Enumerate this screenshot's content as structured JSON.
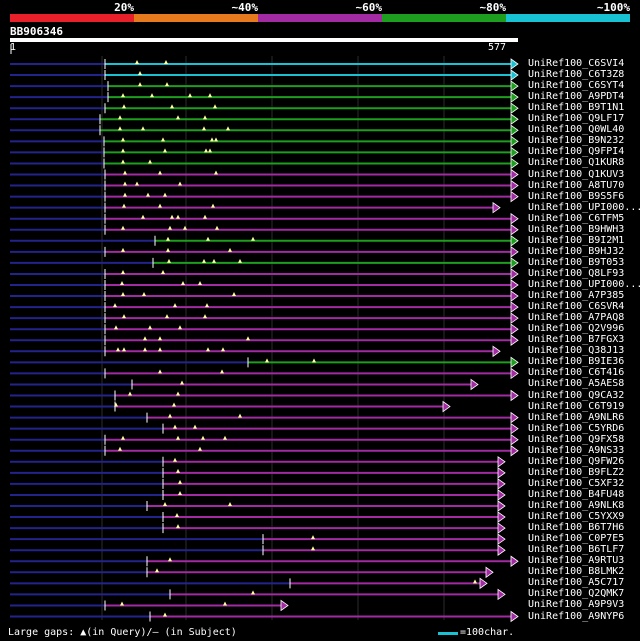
{
  "legend": {
    "segments": [
      {
        "color": "#e8202a"
      },
      {
        "color": "#e87a1e"
      },
      {
        "color": "#a22aa2"
      },
      {
        "color": "#1e9e1e"
      },
      {
        "color": "#19c2d2"
      }
    ],
    "labels": [
      "20%",
      "~40%",
      "~60%",
      "~80%",
      "~100%"
    ]
  },
  "query": {
    "id": "BB906346",
    "start": "1",
    "end": "577"
  },
  "colors": {
    "cyan": "#19c2d2",
    "green": "#1e9e1e",
    "purple": "#a22aa2",
    "subject": "#23238c",
    "gridline": "#2c2c2c",
    "gap": "#ffffa0"
  },
  "hits": [
    {
      "label": "UniRef100_C6SVI4",
      "color": "cyan",
      "start": 105,
      "end": 518,
      "sstart": 10,
      "gaps": [
        137,
        166
      ]
    },
    {
      "label": "UniRef100_C6T3Z8",
      "color": "cyan",
      "start": 105,
      "end": 518,
      "sstart": 10,
      "gaps": [
        140
      ]
    },
    {
      "label": "UniRef100_C6SYT4",
      "color": "green",
      "start": 108,
      "end": 518,
      "sstart": 10,
      "gaps": [
        140,
        167
      ]
    },
    {
      "label": "UniRef100_A9PDT4",
      "color": "green",
      "start": 108,
      "end": 518,
      "sstart": 10,
      "gaps": [
        123,
        152,
        190,
        210
      ]
    },
    {
      "label": "UniRef100_B9T1N1",
      "color": "green",
      "start": 105,
      "end": 518,
      "sstart": 10,
      "gaps": [
        124,
        172,
        215
      ]
    },
    {
      "label": "UniRef100_Q9LF17",
      "color": "green",
      "start": 100,
      "end": 518,
      "sstart": 10,
      "gaps": [
        120,
        178,
        205
      ]
    },
    {
      "label": "UniRef100_Q0WL40",
      "color": "green",
      "start": 100,
      "end": 518,
      "sstart": 10,
      "gaps": [
        120,
        143,
        204,
        228
      ]
    },
    {
      "label": "UniRef100_B9N232",
      "color": "green",
      "start": 104,
      "end": 518,
      "sstart": 10,
      "gaps": [
        123,
        163,
        212,
        216
      ]
    },
    {
      "label": "UniRef100_Q9FPI4",
      "color": "green",
      "start": 104,
      "end": 518,
      "sstart": 10,
      "gaps": [
        123,
        165,
        206,
        210
      ]
    },
    {
      "label": "UniRef100_Q1KUR8",
      "color": "green",
      "start": 104,
      "end": 518,
      "sstart": 10,
      "gaps": [
        123,
        150
      ]
    },
    {
      "label": "UniRef100_Q1KUV3",
      "color": "purple",
      "start": 105,
      "end": 518,
      "sstart": 10,
      "gaps": [
        125,
        160,
        216
      ]
    },
    {
      "label": "UniRef100_A8TU70",
      "color": "purple",
      "start": 105,
      "end": 518,
      "sstart": 10,
      "gaps": [
        125,
        137,
        180
      ]
    },
    {
      "label": "UniRef100_B9S5F6",
      "color": "purple",
      "start": 105,
      "end": 518,
      "sstart": 10,
      "gaps": [
        125,
        148,
        165
      ]
    },
    {
      "label": "UniRef100_UPI000...",
      "color": "purple",
      "start": 105,
      "end": 500,
      "sstart": 10,
      "gaps": [
        124,
        160,
        213
      ]
    },
    {
      "label": "UniRef100_C6TFM5",
      "color": "purple",
      "start": 105,
      "end": 518,
      "sstart": 10,
      "gaps": [
        143,
        172,
        178,
        205
      ]
    },
    {
      "label": "UniRef100_B9HWH3",
      "color": "purple",
      "start": 105,
      "end": 518,
      "sstart": 10,
      "gaps": [
        123,
        170,
        185,
        217
      ]
    },
    {
      "label": "UniRef100_B9I2M1",
      "color": "green",
      "start": 155,
      "end": 518,
      "sstart": 10,
      "gaps": [
        168,
        208,
        253
      ]
    },
    {
      "label": "UniRef100_B9HJ32",
      "color": "purple",
      "start": 105,
      "end": 518,
      "sstart": 10,
      "gaps": [
        123,
        168,
        230
      ]
    },
    {
      "label": "UniRef100_B9T053",
      "color": "green",
      "start": 153,
      "end": 518,
      "sstart": 10,
      "gaps": [
        169,
        204,
        214,
        240
      ]
    },
    {
      "label": "UniRef100_Q8LF93",
      "color": "purple",
      "start": 105,
      "end": 518,
      "sstart": 10,
      "gaps": [
        123,
        163
      ]
    },
    {
      "label": "UniRef100_UPI000...",
      "color": "purple",
      "start": 105,
      "end": 518,
      "sstart": 10,
      "gaps": [
        122,
        183,
        200
      ]
    },
    {
      "label": "UniRef100_A7P385",
      "color": "purple",
      "start": 105,
      "end": 518,
      "sstart": 10,
      "gaps": [
        123,
        144,
        234
      ]
    },
    {
      "label": "UniRef100_C6SVR4",
      "color": "purple",
      "start": 105,
      "end": 518,
      "sstart": 10,
      "gaps": [
        115,
        175,
        207
      ]
    },
    {
      "label": "UniRef100_A7PAQ8",
      "color": "purple",
      "start": 105,
      "end": 518,
      "sstart": 10,
      "gaps": [
        124,
        167,
        205
      ]
    },
    {
      "label": "UniRef100_Q2V996",
      "color": "purple",
      "start": 105,
      "end": 518,
      "sstart": 10,
      "gaps": [
        116,
        150,
        180
      ]
    },
    {
      "label": "UniRef100_B7FGX3",
      "color": "purple",
      "start": 105,
      "end": 518,
      "sstart": 10,
      "gaps": [
        145,
        160,
        248
      ]
    },
    {
      "label": "UniRef100_Q38J13",
      "color": "purple",
      "start": 105,
      "end": 500,
      "sstart": 10,
      "gaps": [
        118,
        124,
        145,
        160,
        208,
        223
      ]
    },
    {
      "label": "UniRef100_B9IE36",
      "color": "green",
      "start": 248,
      "end": 518,
      "sstart": 10,
      "gaps": [
        267,
        314
      ]
    },
    {
      "label": "UniRef100_C6T416",
      "color": "purple",
      "start": 105,
      "end": 518,
      "sstart": 10,
      "gaps": [
        160,
        222
      ]
    },
    {
      "label": "UniRef100_A5AES8",
      "color": "purple",
      "start": 132,
      "end": 478,
      "sstart": 10,
      "gaps": [
        182
      ]
    },
    {
      "label": "UniRef100_Q9CA32",
      "color": "purple",
      "start": 115,
      "end": 518,
      "sstart": 10,
      "gaps": [
        130,
        178
      ]
    },
    {
      "label": "UniRef100_C6T919",
      "color": "purple",
      "start": 115,
      "end": 450,
      "sstart": 10,
      "gaps": [
        116,
        174
      ]
    },
    {
      "label": "UniRef100_A9NLR6",
      "color": "purple",
      "start": 147,
      "end": 518,
      "sstart": 10,
      "gaps": [
        170,
        240
      ]
    },
    {
      "label": "UniRef100_C5YRD6",
      "color": "purple",
      "start": 163,
      "end": 518,
      "sstart": 10,
      "gaps": [
        175,
        195
      ]
    },
    {
      "label": "UniRef100_Q9FX58",
      "color": "purple",
      "start": 105,
      "end": 518,
      "sstart": 10,
      "gaps": [
        123,
        178,
        203,
        225
      ]
    },
    {
      "label": "UniRef100_A9NS33",
      "color": "purple",
      "start": 105,
      "end": 518,
      "sstart": 10,
      "gaps": [
        120,
        200
      ]
    },
    {
      "label": "UniRef100_Q9FW26",
      "color": "purple",
      "start": 163,
      "end": 505,
      "sstart": 10,
      "gaps": [
        175
      ]
    },
    {
      "label": "UniRef100_B9FLZ2",
      "color": "purple",
      "start": 163,
      "end": 505,
      "sstart": 10,
      "gaps": [
        178
      ]
    },
    {
      "label": "UniRef100_C5XF32",
      "color": "purple",
      "start": 163,
      "end": 505,
      "sstart": 10,
      "gaps": [
        180
      ]
    },
    {
      "label": "UniRef100_B4FU48",
      "color": "purple",
      "start": 163,
      "end": 505,
      "sstart": 10,
      "gaps": [
        180
      ]
    },
    {
      "label": "UniRef100_A9NLK8",
      "color": "purple",
      "start": 147,
      "end": 505,
      "sstart": 10,
      "gaps": [
        165,
        230
      ]
    },
    {
      "label": "UniRef100_C5YXX9",
      "color": "purple",
      "start": 163,
      "end": 505,
      "sstart": 10,
      "gaps": [
        177
      ]
    },
    {
      "label": "UniRef100_B6T7H6",
      "color": "purple",
      "start": 163,
      "end": 505,
      "sstart": 10,
      "gaps": [
        178
      ]
    },
    {
      "label": "UniRef100_C0P7E5",
      "color": "purple",
      "start": 263,
      "end": 505,
      "sstart": 10,
      "gaps": [
        313
      ]
    },
    {
      "label": "UniRef100_B6TLF7",
      "color": "purple",
      "start": 263,
      "end": 505,
      "sstart": 10,
      "gaps": [
        313
      ]
    },
    {
      "label": "UniRef100_A9RTU3",
      "color": "purple",
      "start": 147,
      "end": 518,
      "sstart": 10,
      "gaps": [
        170
      ]
    },
    {
      "label": "UniRef100_B8LMK2",
      "color": "purple",
      "start": 147,
      "end": 493,
      "sstart": 10,
      "gaps": [
        157
      ]
    },
    {
      "label": "UniRef100_A5C717",
      "color": "purple",
      "start": 290,
      "end": 487,
      "sstart": 10,
      "gaps": [
        475
      ]
    },
    {
      "label": "UniRef100_Q2QMK7",
      "color": "purple",
      "start": 170,
      "end": 505,
      "sstart": 10,
      "gaps": [
        253
      ]
    },
    {
      "label": "UniRef100_A9P9V3",
      "color": "purple",
      "start": 105,
      "end": 288,
      "sstart": 10,
      "gaps": [
        122,
        225
      ]
    },
    {
      "label": "UniRef100_A9NYP6",
      "color": "purple",
      "start": 150,
      "end": 518,
      "sstart": 10,
      "gaps": [
        165
      ]
    }
  ],
  "footer": {
    "gaps_legend": "Large gaps: ▲(in Query)/— (in Subject)",
    "scale_legend": "=100char."
  }
}
